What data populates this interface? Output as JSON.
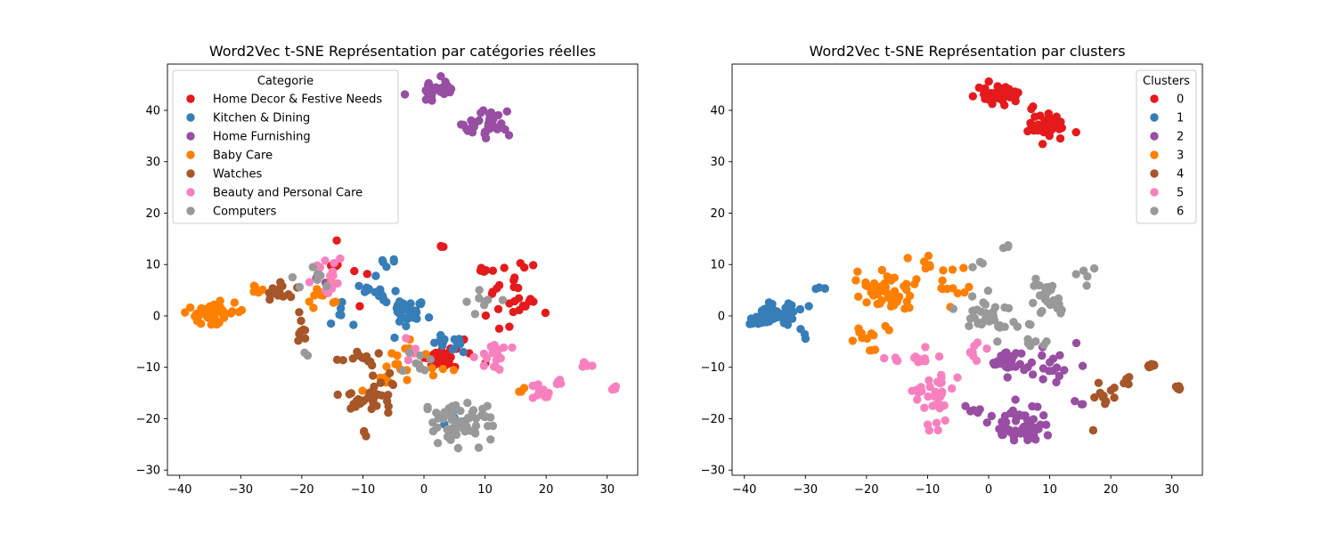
{
  "colors": [
    "#e41a1c",
    "#377eb8",
    "#984ea3",
    "#ff7f00",
    "#a65628",
    "#f781bf",
    "#999999"
  ],
  "chart_data": [
    {
      "type": "scatter",
      "title": "Word2Vec t-SNE Représentation par catégories réelles",
      "xlabel": "",
      "ylabel": "",
      "xlim": [
        -42,
        35
      ],
      "ylim": [
        -31,
        49
      ],
      "xticks": [
        -40,
        -30,
        -20,
        -10,
        0,
        10,
        20,
        30
      ],
      "yticks": [
        -30,
        -20,
        -10,
        0,
        10,
        20,
        30,
        40
      ],
      "xtick_labels": [
        "−40",
        "−30",
        "−20",
        "−10",
        "0",
        "10",
        "20",
        "30"
      ],
      "ytick_labels": [
        "−30",
        "−20",
        "−10",
        "0",
        "10",
        "20",
        "30",
        "40"
      ],
      "legend": {
        "title": "Categorie",
        "placement": "top-left"
      },
      "series": [
        {
          "name": "Home Decor & Festive Needs",
          "color_index": 0,
          "clusters": [
            [
              2.5,
              -8.5,
              1.5,
              1.2,
              40
            ],
            [
              10,
              9,
              1,
              1,
              6
            ],
            [
              14,
              2,
              3,
              3,
              22
            ],
            [
              3,
              13.5,
              0.5,
              0.4,
              3
            ],
            [
              -14,
              8,
              3,
              3,
              8
            ],
            [
              6,
              -8,
              3,
              2,
              10
            ],
            [
              16,
              9,
              1.5,
              1.5,
              5
            ]
          ]
        },
        {
          "name": "Kitchen & Dining",
          "color_index": 1,
          "clusters": [
            [
              -2,
              1,
              2.5,
              2,
              30
            ],
            [
              -8,
              5,
              2,
              2,
              15
            ],
            [
              4,
              -5,
              2,
              1.5,
              14
            ],
            [
              9,
              38,
              0.5,
              0.5,
              1
            ],
            [
              -14,
              0,
              2,
              2,
              6
            ],
            [
              -5,
              10,
              2,
              1,
              5
            ],
            [
              5,
              -21,
              2,
              2,
              4
            ]
          ]
        },
        {
          "name": "Home Furnishing",
          "color_index": 2,
          "clusters": [
            [
              2,
              44,
              2.5,
              1.2,
              35
            ],
            [
              10,
              37,
              2.5,
              2,
              35
            ],
            [
              -16,
              7,
              1,
              1,
              2
            ]
          ]
        },
        {
          "name": "Baby Care",
          "color_index": 3,
          "clusters": [
            [
              -35,
              0.5,
              2.5,
              1.3,
              60
            ],
            [
              -27,
              5.5,
              1.5,
              1,
              6
            ],
            [
              -17,
              4,
              2,
              2,
              10
            ],
            [
              -5,
              -10,
              3,
              5,
              18
            ],
            [
              4,
              -12,
              1.5,
              2,
              4
            ],
            [
              15,
              -15,
              1,
              1,
              3
            ]
          ]
        },
        {
          "name": "Watches",
          "color_index": 4,
          "clusters": [
            [
              -24,
              4.5,
              2,
              1.5,
              14
            ],
            [
              -20,
              -1,
              2,
              3,
              8
            ],
            [
              -10,
              -8,
              3,
              1,
              12
            ],
            [
              -9,
              -16,
              3,
              2,
              28
            ],
            [
              -6,
              -12,
              2,
              2,
              6
            ],
            [
              -9,
              -22,
              1,
              1,
              3
            ]
          ]
        },
        {
          "name": "Beauty and Personal Care",
          "color_index": 5,
          "clusters": [
            [
              -15,
              7,
              2,
              3,
              16
            ],
            [
              26.5,
              -9.5,
              0.6,
              0.4,
              8
            ],
            [
              31,
              -14,
              0.4,
              0.3,
              6
            ],
            [
              19,
              -15,
              1,
              1.2,
              12
            ],
            [
              11,
              -8,
              2,
              2,
              18
            ],
            [
              -2,
              -7,
              1.5,
              1.5,
              5
            ],
            [
              22,
              -13,
              1.5,
              0.8,
              5
            ]
          ]
        },
        {
          "name": "Computers",
          "color_index": 6,
          "clusters": [
            [
              6,
              -21,
              3.5,
              2.5,
              60
            ],
            [
              -1,
              -10,
              2,
              2,
              8
            ],
            [
              -18,
              8,
              2,
              2,
              8
            ],
            [
              10,
              3,
              1.5,
              1.5,
              8
            ],
            [
              -19,
              -7.5,
              1,
              0.5,
              2
            ],
            [
              2,
              -19,
              1.5,
              1.5,
              6
            ]
          ]
        }
      ]
    },
    {
      "type": "scatter",
      "title": "Word2Vec t-SNE Représentation par clusters",
      "xlabel": "",
      "ylabel": "",
      "xlim": [
        -42,
        35
      ],
      "ylim": [
        -31,
        49
      ],
      "xticks": [
        -40,
        -30,
        -20,
        -10,
        0,
        10,
        20,
        30
      ],
      "yticks": [
        -30,
        -20,
        -10,
        0,
        10,
        20,
        30,
        40
      ],
      "xtick_labels": [
        "−40",
        "−30",
        "−20",
        "−10",
        "0",
        "10",
        "20",
        "30"
      ],
      "ytick_labels": [
        "−30",
        "−20",
        "−10",
        "0",
        "10",
        "20",
        "30",
        "40"
      ],
      "legend": {
        "title": "Clusters",
        "placement": "top-right"
      },
      "series": [
        {
          "name": "0",
          "color_index": 0,
          "clusters": [
            [
              2,
              43,
              2.5,
              1.5,
              40
            ],
            [
              10,
              37,
              2.5,
              2,
              40
            ]
          ]
        },
        {
          "name": "1",
          "color_index": 1,
          "clusters": [
            [
              -35,
              0.5,
              2.5,
              1.3,
              60
            ],
            [
              -27,
              5.5,
              1,
              0.5,
              4
            ],
            [
              -30,
              -3,
              1,
              1,
              3
            ]
          ]
        },
        {
          "name": "2",
          "color_index": 2,
          "clusters": [
            [
              5,
              -21,
              3.5,
              2.5,
              55
            ],
            [
              3,
              -8.5,
              1.5,
              1.2,
              25
            ],
            [
              10,
              -10,
              3,
              3,
              20
            ],
            [
              -2,
              -18,
              1.5,
              1.5,
              6
            ],
            [
              15,
              -17,
              1,
              1,
              3
            ]
          ]
        },
        {
          "name": "3",
          "color_index": 3,
          "clusters": [
            [
              -17,
              5,
              3,
              2.5,
              50
            ],
            [
              -20,
              -3,
              2,
              2,
              10
            ],
            [
              -6,
              6,
              2,
              3,
              12
            ],
            [
              -19,
              -7,
              1,
              0.5,
              3
            ],
            [
              -11,
              10,
              2,
              1.5,
              6
            ]
          ]
        },
        {
          "name": "4",
          "color_index": 4,
          "clusters": [
            [
              26.5,
              -9.5,
              0.6,
              0.4,
              8
            ],
            [
              31,
              -14,
              0.4,
              0.3,
              6
            ],
            [
              19,
              -15,
              1,
              1.2,
              10
            ],
            [
              22,
              -13,
              1.5,
              0.8,
              5
            ],
            [
              17,
              -22.5,
              0.3,
              0.3,
              1
            ]
          ]
        },
        {
          "name": "5",
          "color_index": 5,
          "clusters": [
            [
              -9,
              -15,
              2,
              3,
              30
            ],
            [
              -12,
              -8,
              3,
              1,
              16
            ],
            [
              -2,
              -7,
              1.5,
              1.5,
              8
            ],
            [
              -9,
              -22,
              1,
              1,
              3
            ]
          ]
        },
        {
          "name": "6",
          "color_index": 6,
          "clusters": [
            [
              0,
              0,
              3,
              3,
              35
            ],
            [
              10,
              3,
              2.5,
              2.5,
              25
            ],
            [
              16,
              8,
              1.5,
              1.5,
              5
            ],
            [
              3,
              13.5,
              0.5,
              0.4,
              3
            ],
            [
              7,
              -5,
              2,
              1.5,
              6
            ],
            [
              -1,
              10,
              1,
              1,
              3
            ]
          ]
        }
      ]
    }
  ]
}
